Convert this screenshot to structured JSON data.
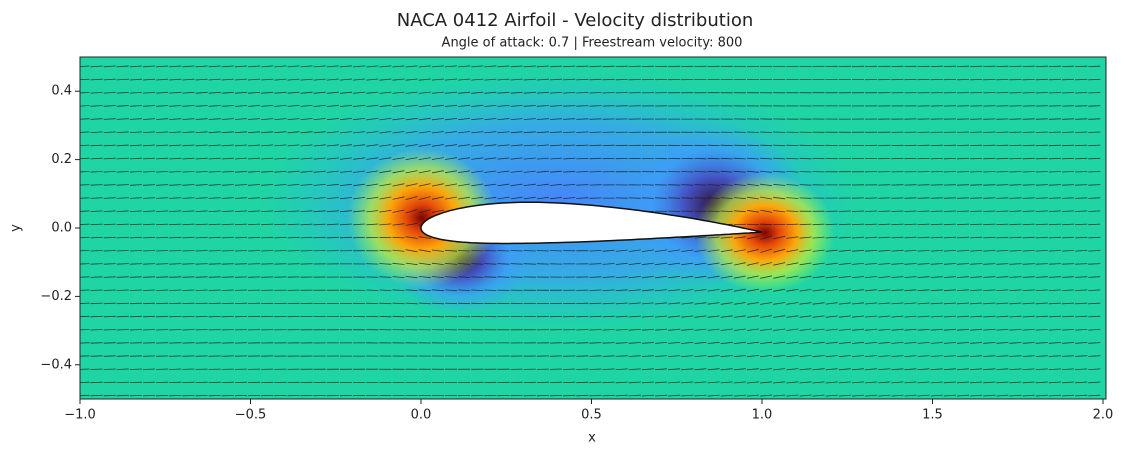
{
  "chart_data": {
    "type": "quiver",
    "title": "NACA 0412 Airfoil - Velocity distribution",
    "subtitle": "Angle of attack: 0.7 | Freestream velocity: 800",
    "x_label": "x",
    "y_label": "y",
    "xlim": [
      -1,
      2
    ],
    "ylim": [
      -0.5,
      0.5
    ],
    "xticks": [
      {
        "value": -1,
        "label": "−1.0"
      },
      {
        "value": -0.5,
        "label": "−0.5"
      },
      {
        "value": 0,
        "label": "0.0"
      },
      0.5,
      {
        "value": 1,
        "label": "1.0"
      },
      1.5,
      {
        "value": 2,
        "label": "2.0"
      }
    ],
    "yticks": [
      {
        "value": -0.4,
        "label": "−0.4"
      },
      {
        "value": -0.2,
        "label": "−0.2"
      },
      {
        "value": 0,
        "label": "0.0"
      },
      0.2,
      0.4
    ]
  }
}
